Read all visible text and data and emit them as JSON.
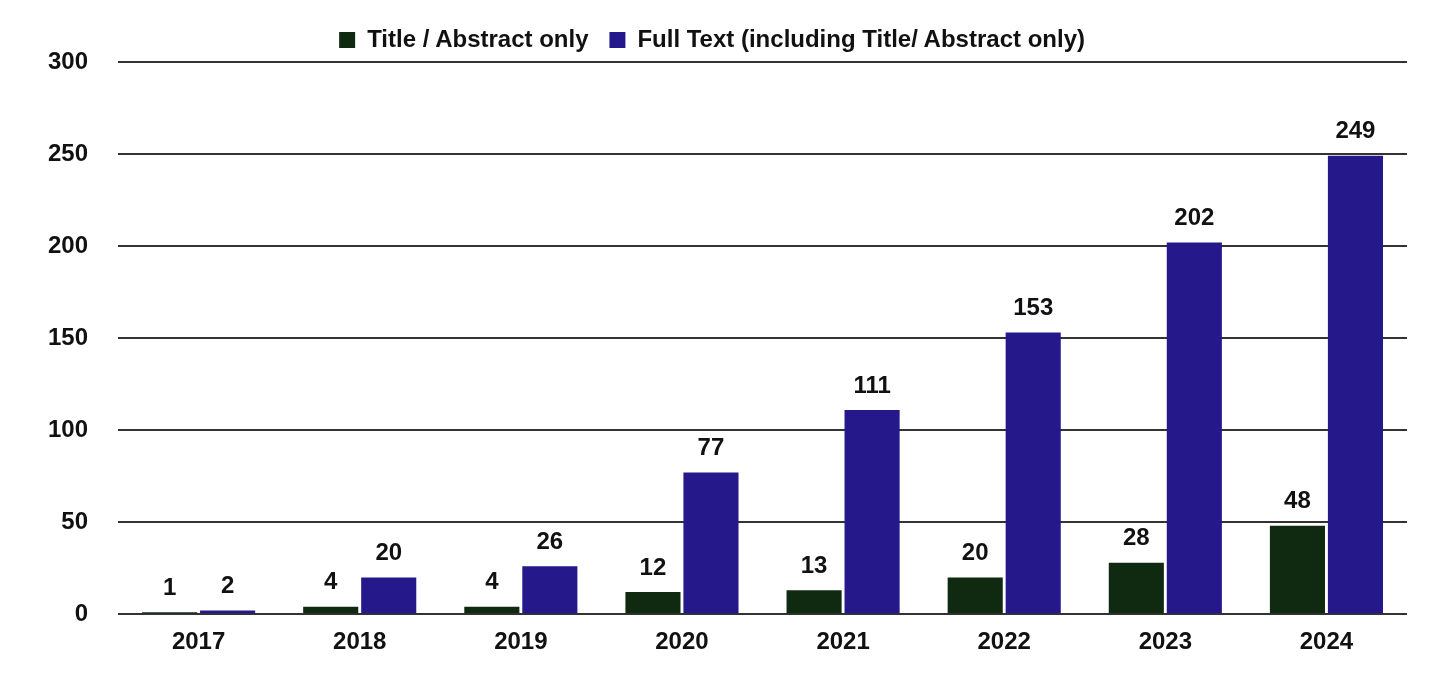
{
  "chart_data": {
    "type": "bar",
    "categories": [
      "2017",
      "2018",
      "2019",
      "2020",
      "2021",
      "2022",
      "2023",
      "2024"
    ],
    "series": [
      {
        "name": "Title / Abstract only",
        "color": "#102a12",
        "values": [
          1,
          4,
          4,
          12,
          13,
          20,
          28,
          48
        ]
      },
      {
        "name": "Full Text (including Title/ Abstract only)",
        "color": "#24188a",
        "values": [
          2,
          20,
          26,
          77,
          111,
          153,
          202,
          249
        ]
      }
    ],
    "ylim": [
      0,
      300
    ],
    "yticks": [
      0,
      50,
      100,
      150,
      200,
      250,
      300
    ],
    "grid": "y",
    "legend": "top",
    "data_labels": true
  }
}
